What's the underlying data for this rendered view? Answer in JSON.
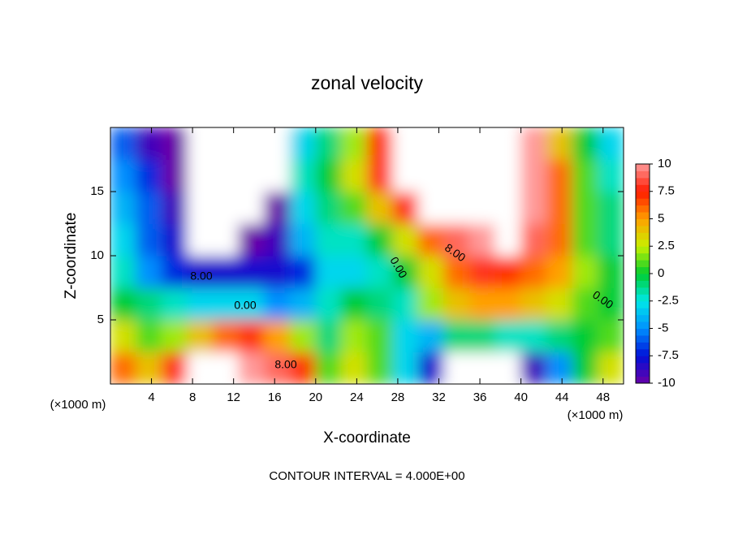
{
  "chart_data": {
    "type": "filled-contour",
    "title": "zonal velocity",
    "x_label": "X-coordinate",
    "y_label": "Z-coordinate",
    "x_unit_label": "(×1000 m)",
    "footer": "CONTOUR INTERVAL = 4.000E+00",
    "xlim": [
      0,
      50
    ],
    "ylim": [
      0,
      20
    ],
    "xticks": [
      4,
      8,
      12,
      16,
      20,
      24,
      28,
      32,
      36,
      40,
      44,
      48
    ],
    "yticks": [
      5,
      10,
      15
    ],
    "clim": [
      -10,
      10
    ],
    "cticks": [
      10,
      7.5,
      5,
      2.5,
      0,
      -2.5,
      -5,
      -7.5,
      -10
    ],
    "colormap": [
      "#6a00a8",
      "#0010d8",
      "#0090ff",
      "#00e8e8",
      "#00cc30",
      "#c8f000",
      "#ffa000",
      "#ff1a00",
      "#ff9a9a"
    ],
    "out_of_range_color": "#ffffff",
    "annotations": [
      "8.00",
      "0.00",
      "8.00",
      "0.00",
      "8.00",
      "0.00"
    ],
    "x": [
      1.25,
      3.75,
      6.25,
      8.75,
      11.25,
      13.75,
      16.25,
      18.75,
      21.25,
      23.75,
      26.25,
      28.75,
      31.25,
      33.75,
      36.25,
      38.75,
      41.25,
      43.75,
      46.25,
      48.75
    ],
    "z": [
      1.25,
      3.75,
      6.25,
      8.75,
      11.25,
      13.75,
      16.25,
      18.75
    ],
    "values": [
      [
        6,
        4,
        8,
        11,
        12,
        10,
        9,
        7,
        1,
        3,
        1,
        -3,
        -8,
        -11,
        -12,
        -11,
        -9,
        -5,
        0,
        3
      ],
      [
        3,
        1,
        2,
        4,
        6,
        7,
        5,
        2,
        -1,
        2,
        1,
        -3,
        -4,
        -1,
        -1,
        -2,
        -2,
        -1,
        0,
        1
      ],
      [
        0,
        -1,
        -2,
        -3,
        -3,
        -3,
        -5,
        -4,
        -2,
        0,
        -1,
        -2,
        2,
        4,
        5,
        5,
        4,
        3,
        1,
        0
      ],
      [
        -2,
        -5,
        -7,
        -8,
        -8,
        -8,
        -8,
        -7,
        -3,
        -3,
        -2,
        0,
        3,
        6,
        8,
        7,
        6,
        5,
        2,
        0
      ],
      [
        -3,
        -6,
        -8,
        -11,
        -12,
        -10,
        -9,
        -4,
        -2,
        -2,
        0,
        3,
        6,
        9,
        10,
        11,
        9,
        6,
        1,
        -1
      ],
      [
        -4,
        -6,
        -9,
        -12,
        -13,
        -12,
        -10,
        -3,
        -1,
        1,
        4,
        8,
        11,
        13,
        13,
        13,
        10,
        6,
        1,
        -1
      ],
      [
        -5,
        -7,
        -10,
        -13,
        -14,
        -14,
        -12,
        -2,
        0,
        3,
        8,
        11,
        13,
        14,
        14,
        13,
        10,
        6,
        1,
        -2
      ],
      [
        -6,
        -9,
        -10,
        -14,
        -14,
        -14,
        -14,
        -3,
        -1,
        2,
        7,
        12,
        12,
        12,
        12,
        12,
        10,
        4,
        0,
        -3
      ]
    ]
  }
}
